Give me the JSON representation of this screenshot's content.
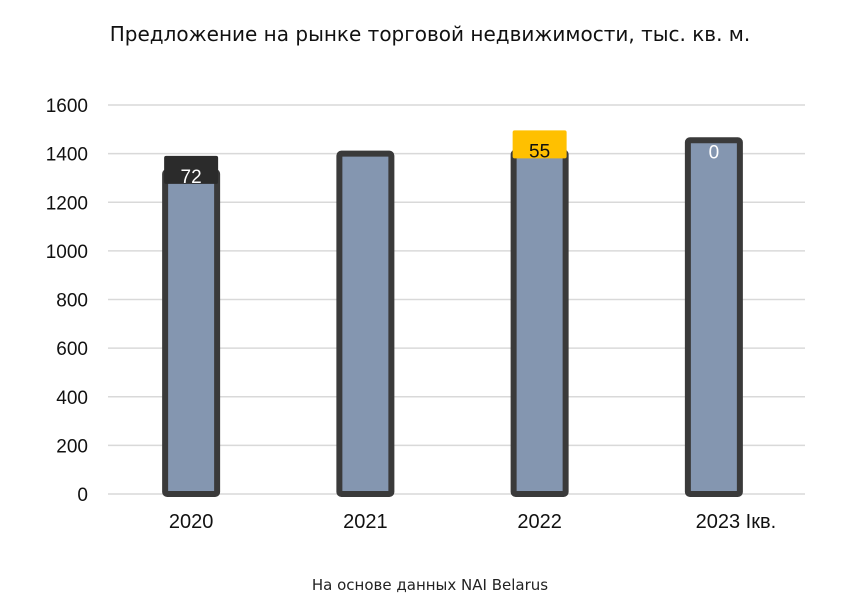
{
  "chart_data": {
    "type": "bar",
    "title": "Предложение на рынке торговой недвижимости, тыс. кв. м.",
    "source": "На основе данных NAI Belarus",
    "categories": [
      "2020",
      "2021",
      "2022",
      "2023 Iкв."
    ],
    "values": [
      1325,
      1400,
      1405,
      1455
    ],
    "data_labels": [
      "72",
      "",
      "55",
      "0"
    ],
    "ylim": [
      0,
      1600
    ],
    "yticks": [
      0,
      200,
      400,
      600,
      800,
      1000,
      1200,
      1400,
      1600
    ],
    "grid": true,
    "legend": "none",
    "colors": {
      "bar_fill": "#8496b0",
      "bar_outline": "#3a3a3a",
      "gridline": "#d9d9d9",
      "label_dark_bg": "#2b2b2b",
      "label_dark_text": "#ffffff",
      "label_highlight_bg": "#ffc000",
      "label_highlight_text": "#111111"
    },
    "label_styles": [
      "dark",
      "none",
      "highlight",
      "plain"
    ]
  }
}
